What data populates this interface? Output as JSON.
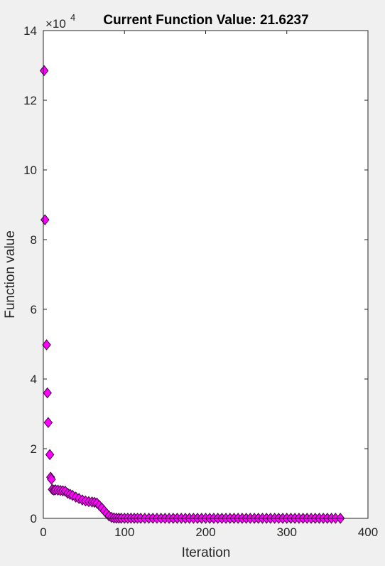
{
  "figure": {
    "title": "Current Function Value: 21.6237",
    "exponent_base": "×10",
    "exponent_power": "4"
  },
  "colors": {
    "background": "#f0f0f0",
    "axes_background": "#ffffff",
    "axis": "#262626",
    "marker_fill": "#ff00ff",
    "marker_edge": "#3a003a"
  },
  "chart_data": {
    "type": "scatter",
    "title": "Current Function Value: 21.6237",
    "xlabel": "Iteration",
    "ylabel": "Function value",
    "xlim": [
      0,
      400
    ],
    "ylim": [
      0,
      140000
    ],
    "y_exponent": 4,
    "xticks": [
      0,
      100,
      200,
      300,
      400
    ],
    "xtick_labels": [
      "0",
      "100",
      "200",
      "300",
      "400"
    ],
    "yticks": [
      0,
      20000,
      40000,
      60000,
      80000,
      100000,
      120000,
      140000
    ],
    "ytick_labels": [
      "0",
      "2",
      "4",
      "6",
      "8",
      "10",
      "12",
      "14"
    ],
    "grid": false,
    "legend": "none",
    "marker": "diamond",
    "series": [
      {
        "x": [
          1,
          2,
          4,
          5,
          6,
          8,
          9,
          10,
          11,
          13,
          15,
          18,
          21,
          24,
          27,
          30,
          33,
          36,
          40,
          44,
          48,
          52,
          56,
          60,
          63,
          66,
          69,
          72,
          75,
          78,
          81,
          84,
          87,
          90,
          93,
          96,
          100,
          104,
          108,
          112,
          116,
          120,
          125,
          130,
          135,
          140,
          145,
          150,
          155,
          160,
          165,
          170,
          175,
          180,
          185,
          190,
          195,
          200,
          205,
          210,
          215,
          220,
          225,
          230,
          235,
          240,
          245,
          250,
          255,
          260,
          265,
          270,
          275,
          280,
          285,
          290,
          295,
          300,
          305,
          310,
          315,
          320,
          325,
          330,
          335,
          340,
          345,
          350,
          355,
          360,
          366
        ],
        "y": [
          128500,
          85700,
          49800,
          36000,
          27500,
          18300,
          11800,
          11200,
          8300,
          8100,
          8200,
          8100,
          8000,
          7900,
          7800,
          7200,
          6900,
          6600,
          6100,
          5700,
          5300,
          5000,
          4800,
          4700,
          4600,
          4400,
          3700,
          3000,
          2200,
          1400,
          700,
          300,
          120,
          70,
          50,
          40,
          35,
          32,
          30,
          28,
          27,
          26,
          25,
          25,
          24,
          24,
          24,
          23,
          23,
          23,
          23,
          23,
          23,
          23,
          22,
          22,
          22,
          22,
          22,
          22,
          22,
          22,
          22,
          22,
          22,
          22,
          22,
          22,
          22,
          22,
          22,
          22,
          22,
          22,
          22,
          22,
          22,
          22,
          22,
          22,
          22,
          22,
          22,
          22,
          22,
          22,
          22,
          22,
          22,
          22,
          21.6237
        ]
      }
    ]
  }
}
